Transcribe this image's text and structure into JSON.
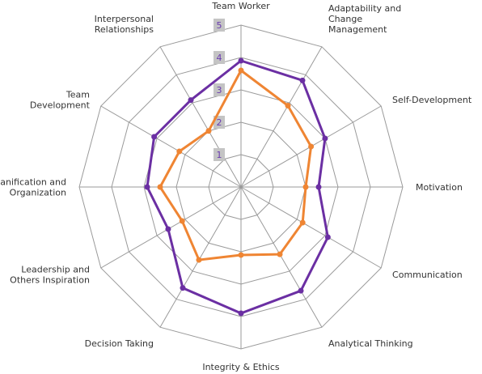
{
  "chart_data": {
    "type": "radar",
    "title": "",
    "axes": [
      "Team Worker",
      "Adaptability and Change Management",
      "Self-Development",
      "Motivation",
      "Communication",
      "Analytical Thinking",
      "Integrity & Ethics",
      "Decision Taking",
      "Leadership and Others Inspiration",
      "Planification and Organization",
      "Team Development",
      "Interpersonal Relationships"
    ],
    "axis_label_lines": [
      [
        "Team Worker"
      ],
      [
        "Adaptability and",
        "Change",
        "Management"
      ],
      [
        "Self-Development"
      ],
      [
        "Motivation"
      ],
      [
        "Communication"
      ],
      [
        "Analytical Thinking"
      ],
      [
        "Integrity & Ethics"
      ],
      [
        "Decision Taking"
      ],
      [
        "Leadership and",
        "Others Inspiration"
      ],
      [
        "Planification and",
        "Organization"
      ],
      [
        "Team",
        "Development"
      ],
      [
        "Interpersonal",
        "Relationships"
      ]
    ],
    "r_ticks": [
      "1",
      "2",
      "3",
      "4",
      "5"
    ],
    "r_range": [
      0,
      5
    ],
    "grid": true,
    "legend": "none",
    "series": [
      {
        "color": "#6b2fa3",
        "values": [
          3.9,
          3.8,
          3.0,
          2.4,
          3.1,
          3.7,
          3.9,
          3.6,
          2.6,
          2.9,
          3.1,
          3.1
        ]
      },
      {
        "color": "#ef8533",
        "values": [
          3.6,
          2.9,
          2.5,
          2.0,
          2.2,
          2.4,
          2.1,
          2.6,
          2.1,
          2.5,
          2.2,
          2.0
        ]
      }
    ]
  }
}
